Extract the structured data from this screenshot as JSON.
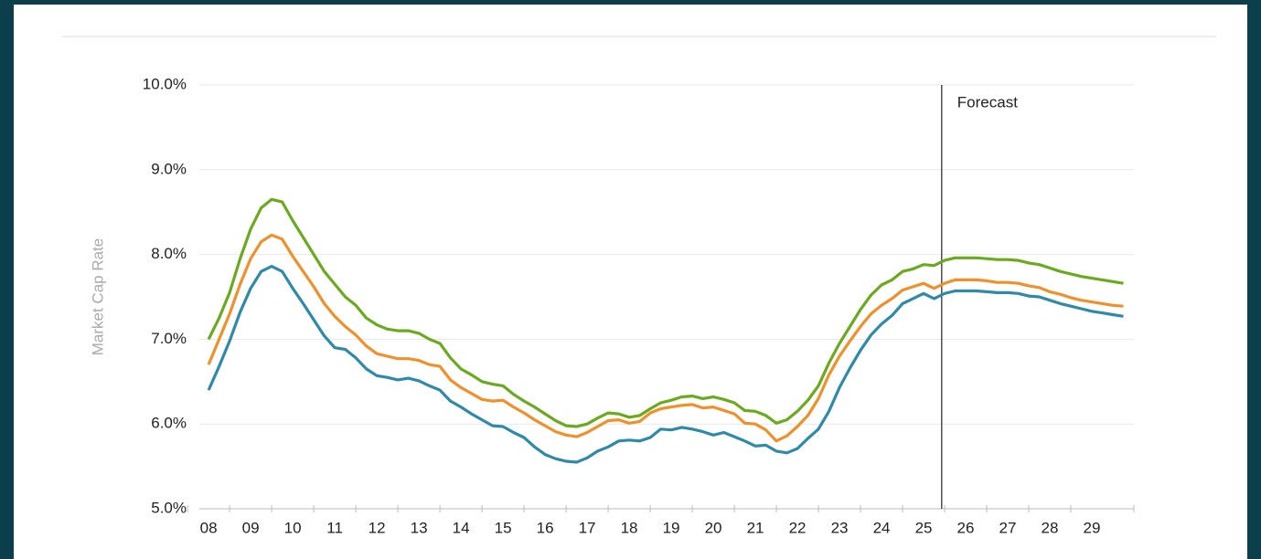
{
  "chart_data": {
    "type": "line",
    "ylabel": "Market Cap Rate",
    "x": [
      8,
      8.25,
      8.5,
      8.75,
      9,
      9.25,
      9.5,
      9.75,
      10,
      10.25,
      10.5,
      10.75,
      11,
      11.25,
      11.5,
      11.75,
      12,
      12.25,
      12.5,
      12.75,
      13,
      13.25,
      13.5,
      13.75,
      14,
      14.25,
      14.5,
      14.75,
      15,
      15.25,
      15.5,
      15.75,
      16,
      16.25,
      16.5,
      16.75,
      17,
      17.25,
      17.5,
      17.75,
      18,
      18.25,
      18.5,
      18.75,
      19,
      19.25,
      19.5,
      19.75,
      20,
      20.25,
      20.5,
      20.75,
      21,
      21.25,
      21.5,
      21.75,
      22,
      22.25,
      22.5,
      22.75,
      23,
      23.25,
      23.5,
      23.75,
      24,
      24.25,
      24.5,
      24.75,
      25,
      25.25,
      25.5,
      25.75,
      26,
      26.25,
      26.5,
      26.75,
      27,
      27.25,
      27.5,
      27.75,
      28,
      28.25,
      28.5,
      28.75,
      29,
      29.25,
      29.5,
      29.75
    ],
    "series": [
      {
        "color": "#6aaa1e",
        "values": [
          7.0,
          7.25,
          7.55,
          7.95,
          8.3,
          8.55,
          8.65,
          8.62,
          8.4,
          8.2,
          8.0,
          7.8,
          7.65,
          7.5,
          7.4,
          7.25,
          7.17,
          7.12,
          7.1,
          7.1,
          7.07,
          7.0,
          6.95,
          6.78,
          6.65,
          6.58,
          6.5,
          6.47,
          6.45,
          6.35,
          6.27,
          6.2,
          6.12,
          6.04,
          5.98,
          5.97,
          6.0,
          6.07,
          6.13,
          6.12,
          6.08,
          6.1,
          6.18,
          6.25,
          6.28,
          6.32,
          6.33,
          6.3,
          6.32,
          6.29,
          6.25,
          6.16,
          6.15,
          6.1,
          6.01,
          6.05,
          6.15,
          6.28,
          6.45,
          6.72,
          6.95,
          7.15,
          7.35,
          7.52,
          7.64,
          7.7,
          7.8,
          7.83,
          7.88,
          7.87,
          7.93,
          7.96,
          7.96,
          7.96,
          7.95,
          7.94,
          7.94,
          7.93,
          7.9,
          7.88,
          7.84,
          7.8,
          7.77,
          7.74,
          7.72,
          7.7,
          7.68,
          7.66
        ]
      },
      {
        "color": "#f0902a",
        "values": [
          6.7,
          7.0,
          7.3,
          7.65,
          7.95,
          8.15,
          8.23,
          8.18,
          7.98,
          7.8,
          7.62,
          7.42,
          7.27,
          7.15,
          7.05,
          6.92,
          6.83,
          6.8,
          6.77,
          6.77,
          6.75,
          6.7,
          6.68,
          6.52,
          6.43,
          6.36,
          6.29,
          6.27,
          6.28,
          6.2,
          6.13,
          6.05,
          5.98,
          5.91,
          5.87,
          5.85,
          5.9,
          5.97,
          6.04,
          6.05,
          6.01,
          6.03,
          6.13,
          6.18,
          6.2,
          6.22,
          6.23,
          6.19,
          6.2,
          6.16,
          6.12,
          6.01,
          6.0,
          5.93,
          5.8,
          5.86,
          5.97,
          6.1,
          6.3,
          6.58,
          6.8,
          6.98,
          7.15,
          7.3,
          7.4,
          7.48,
          7.58,
          7.62,
          7.66,
          7.6,
          7.66,
          7.7,
          7.7,
          7.7,
          7.69,
          7.67,
          7.67,
          7.66,
          7.63,
          7.61,
          7.56,
          7.53,
          7.49,
          7.46,
          7.44,
          7.42,
          7.4,
          7.39
        ]
      },
      {
        "color": "#2e8aa8",
        "values": [
          6.4,
          6.68,
          6.98,
          7.32,
          7.6,
          7.8,
          7.86,
          7.8,
          7.6,
          7.42,
          7.23,
          7.04,
          6.9,
          6.88,
          6.78,
          6.65,
          6.57,
          6.55,
          6.52,
          6.54,
          6.51,
          6.45,
          6.4,
          6.27,
          6.2,
          6.12,
          6.05,
          5.98,
          5.97,
          5.9,
          5.84,
          5.73,
          5.64,
          5.59,
          5.56,
          5.55,
          5.6,
          5.68,
          5.73,
          5.8,
          5.81,
          5.8,
          5.84,
          5.94,
          5.93,
          5.96,
          5.94,
          5.91,
          5.87,
          5.9,
          5.85,
          5.8,
          5.74,
          5.75,
          5.68,
          5.66,
          5.71,
          5.83,
          5.94,
          6.15,
          6.43,
          6.66,
          6.87,
          7.05,
          7.18,
          7.28,
          7.42,
          7.48,
          7.54,
          7.48,
          7.54,
          7.57,
          7.57,
          7.57,
          7.56,
          7.55,
          7.55,
          7.54,
          7.51,
          7.5,
          7.46,
          7.42,
          7.39,
          7.36,
          7.33,
          7.31,
          7.29,
          7.27
        ]
      }
    ],
    "xlim": [
      7.78,
      30
    ],
    "xticks": [
      {
        "value": 8,
        "label": "08"
      },
      {
        "value": 9,
        "label": "09"
      },
      10,
      11,
      12,
      13,
      14,
      15,
      16,
      17,
      18,
      19,
      20,
      21,
      22,
      23,
      24,
      25,
      26,
      27,
      28,
      29
    ],
    "ylim": [
      5,
      10
    ],
    "yticks": [
      {
        "value": 5,
        "label": "5.0%"
      },
      {
        "value": 6,
        "label": "6.0%"
      },
      {
        "value": 7,
        "label": "7.0%"
      },
      {
        "value": 8,
        "label": "8.0%"
      },
      {
        "value": 9,
        "label": "9.0%"
      },
      {
        "value": 10,
        "label": "10.0%"
      }
    ],
    "grid": true,
    "annotations": [
      {
        "text": "Forecast",
        "x": 25.43
      }
    ]
  }
}
